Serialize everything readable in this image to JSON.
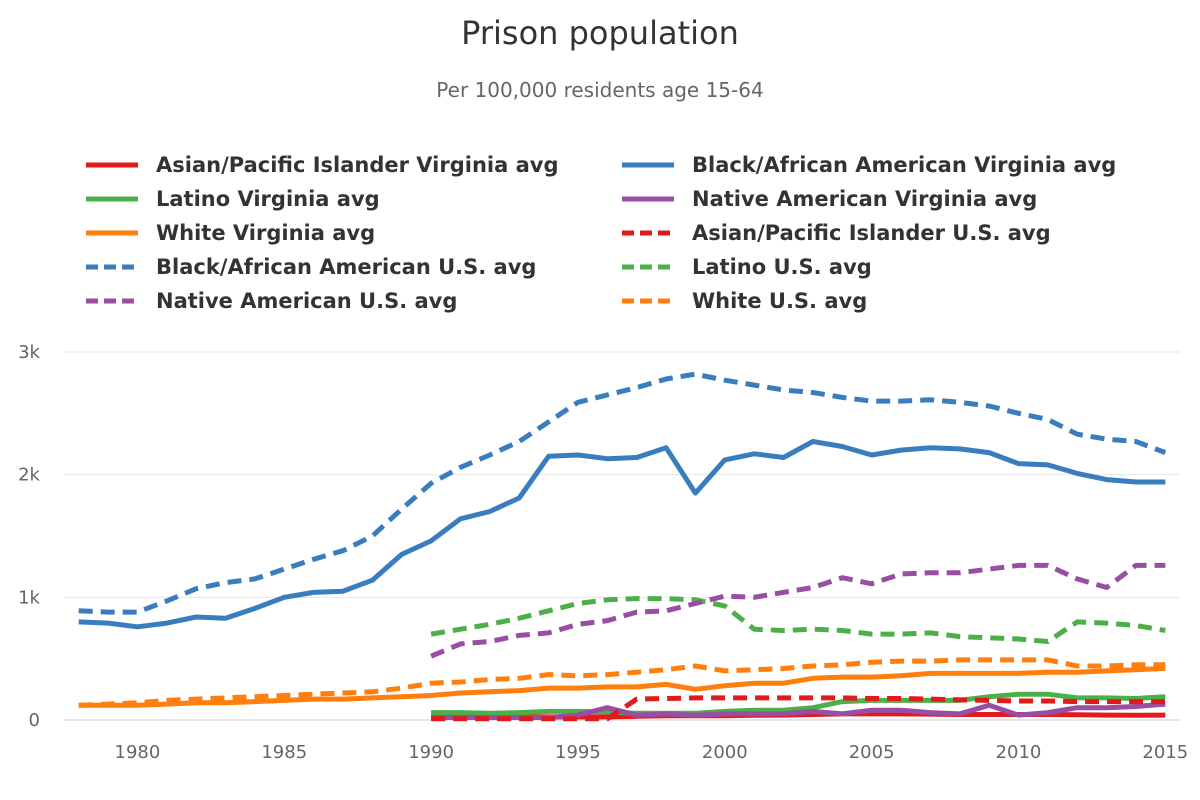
{
  "chart_data": {
    "type": "line",
    "title": "Prison population",
    "subtitle": "Per 100,000 residents age 15-64",
    "xlabel": "",
    "ylabel": "",
    "xlim": [
      1977.5,
      2015.5
    ],
    "ylim": [
      0,
      3000
    ],
    "x_ticks": [
      1980,
      1985,
      1990,
      1995,
      2000,
      2005,
      2010,
      2015
    ],
    "y_ticks": [
      0,
      1000,
      2000,
      3000
    ],
    "y_tick_labels": [
      "0",
      "1k",
      "2k",
      "3k"
    ],
    "grid": "horizontal",
    "legend_position": "top",
    "series": [
      {
        "name": "Asian/Pacific Islander Virginia avg",
        "color": "#e31a1c",
        "dash": "solid",
        "x": [
          1990,
          1991,
          1992,
          1993,
          1994,
          1995,
          1996,
          1997,
          1998,
          1999,
          2000,
          2001,
          2002,
          2003,
          2004,
          2005,
          2006,
          2007,
          2008,
          2009,
          2010,
          2011,
          2012,
          2013,
          2014,
          2015
        ],
        "values": [
          25,
          25,
          25,
          25,
          25,
          25,
          25,
          30,
          35,
          35,
          35,
          38,
          40,
          45,
          50,
          50,
          50,
          48,
          45,
          45,
          45,
          45,
          42,
          40,
          38,
          40
        ]
      },
      {
        "name": "Black/African American Virginia avg",
        "color": "#3a7dbf",
        "dash": "solid",
        "x": [
          1978,
          1979,
          1980,
          1981,
          1982,
          1983,
          1984,
          1985,
          1986,
          1987,
          1988,
          1989,
          1990,
          1991,
          1992,
          1993,
          1994,
          1995,
          1996,
          1997,
          1998,
          1999,
          2000,
          2001,
          2002,
          2003,
          2004,
          2005,
          2006,
          2007,
          2008,
          2009,
          2010,
          2011,
          2012,
          2013,
          2014,
          2015
        ],
        "values": [
          800,
          790,
          760,
          790,
          840,
          830,
          910,
          1000,
          1040,
          1050,
          1140,
          1350,
          1460,
          1640,
          1700,
          1810,
          2150,
          2160,
          2130,
          2140,
          2220,
          1850,
          2120,
          2170,
          2140,
          2270,
          2230,
          2160,
          2200,
          2220,
          2210,
          2180,
          2090,
          2080,
          2010,
          1960,
          1940,
          1940
        ]
      },
      {
        "name": "Latino Virginia avg",
        "color": "#4daf4a",
        "dash": "solid",
        "x": [
          1990,
          1991,
          1992,
          1993,
          1994,
          1995,
          1996,
          1997,
          1998,
          1999,
          2000,
          2001,
          2002,
          2003,
          2004,
          2005,
          2006,
          2007,
          2008,
          2009,
          2010,
          2011,
          2012,
          2013,
          2014,
          2015
        ],
        "values": [
          60,
          60,
          55,
          60,
          70,
          70,
          65,
          55,
          55,
          55,
          70,
          80,
          80,
          100,
          150,
          160,
          160,
          160,
          160,
          190,
          210,
          210,
          180,
          180,
          175,
          190
        ]
      },
      {
        "name": "Native American Virginia avg",
        "color": "#984ea3",
        "dash": "solid",
        "x": [
          1990,
          1991,
          1992,
          1993,
          1994,
          1995,
          1996,
          1997,
          1998,
          1999,
          2000,
          2001,
          2002,
          2003,
          2004,
          2005,
          2006,
          2007,
          2008,
          2009,
          2010,
          2011,
          2012,
          2013,
          2014,
          2015
        ],
        "values": [
          20,
          20,
          20,
          20,
          20,
          40,
          100,
          40,
          50,
          40,
          50,
          50,
          50,
          70,
          50,
          80,
          80,
          60,
          50,
          120,
          40,
          60,
          100,
          100,
          110,
          130
        ]
      },
      {
        "name": "White Virginia avg",
        "color": "#ff7f0e",
        "dash": "solid",
        "x": [
          1978,
          1979,
          1980,
          1981,
          1982,
          1983,
          1984,
          1985,
          1986,
          1987,
          1988,
          1989,
          1990,
          1991,
          1992,
          1993,
          1994,
          1995,
          1996,
          1997,
          1998,
          1999,
          2000,
          2001,
          2002,
          2003,
          2004,
          2005,
          2006,
          2007,
          2008,
          2009,
          2010,
          2011,
          2012,
          2013,
          2014,
          2015
        ],
        "values": [
          120,
          120,
          120,
          130,
          140,
          140,
          150,
          160,
          170,
          170,
          180,
          190,
          200,
          220,
          230,
          240,
          260,
          260,
          270,
          270,
          290,
          250,
          280,
          300,
          300,
          340,
          350,
          350,
          360,
          380,
          380,
          380,
          380,
          390,
          390,
          400,
          410,
          420
        ]
      },
      {
        "name": "Asian/Pacific Islander U.S. avg",
        "color": "#e31a1c",
        "dash": "dashed",
        "x": [
          1990,
          1991,
          1992,
          1993,
          1994,
          1995,
          1996,
          1997,
          1998,
          1999,
          2000,
          2001,
          2002,
          2003,
          2004,
          2005,
          2006,
          2007,
          2008,
          2009,
          2010,
          2011,
          2012,
          2013,
          2014,
          2015
        ],
        "values": [
          10,
          10,
          10,
          10,
          10,
          10,
          10,
          170,
          175,
          180,
          180,
          180,
          180,
          180,
          180,
          175,
          175,
          170,
          165,
          160,
          155,
          155,
          150,
          150,
          150,
          150
        ]
      },
      {
        "name": "Black/African American U.S. avg",
        "color": "#3a7dbf",
        "dash": "dashed",
        "x": [
          1978,
          1979,
          1980,
          1981,
          1982,
          1983,
          1984,
          1985,
          1986,
          1987,
          1988,
          1989,
          1990,
          1991,
          1992,
          1993,
          1994,
          1995,
          1996,
          1997,
          1998,
          1999,
          2000,
          2001,
          2002,
          2003,
          2004,
          2005,
          2006,
          2007,
          2008,
          2009,
          2010,
          2011,
          2012,
          2013,
          2014,
          2015
        ],
        "values": [
          890,
          880,
          880,
          970,
          1070,
          1120,
          1150,
          1230,
          1310,
          1380,
          1500,
          1720,
          1930,
          2060,
          2160,
          2270,
          2430,
          2590,
          2650,
          2710,
          2780,
          2820,
          2770,
          2730,
          2690,
          2670,
          2630,
          2600,
          2600,
          2610,
          2590,
          2560,
          2500,
          2450,
          2330,
          2290,
          2270,
          2180
        ]
      },
      {
        "name": "Latino U.S. avg",
        "color": "#4daf4a",
        "dash": "dashed",
        "x": [
          1990,
          1991,
          1992,
          1993,
          1994,
          1995,
          1996,
          1997,
          1998,
          1999,
          2000,
          2001,
          2002,
          2003,
          2004,
          2005,
          2006,
          2007,
          2008,
          2009,
          2010,
          2011,
          2012,
          2013,
          2014,
          2015
        ],
        "values": [
          700,
          740,
          780,
          830,
          890,
          950,
          980,
          990,
          990,
          980,
          930,
          740,
          730,
          740,
          730,
          700,
          700,
          710,
          680,
          670,
          660,
          640,
          800,
          790,
          770,
          730
        ]
      },
      {
        "name": "Native American U.S. avg",
        "color": "#984ea3",
        "dash": "dashed",
        "x": [
          1990,
          1991,
          1992,
          1993,
          1994,
          1995,
          1996,
          1997,
          1998,
          1999,
          2000,
          2001,
          2002,
          2003,
          2004,
          2005,
          2006,
          2007,
          2008,
          2009,
          2010,
          2011,
          2012,
          2013,
          2014,
          2015
        ],
        "values": [
          520,
          620,
          640,
          690,
          710,
          780,
          810,
          880,
          890,
          950,
          1010,
          1000,
          1040,
          1080,
          1160,
          1110,
          1190,
          1200,
          1200,
          1230,
          1260,
          1260,
          1150,
          1080,
          1260,
          1260
        ]
      },
      {
        "name": "White U.S. avg",
        "color": "#ff7f0e",
        "dash": "dashed",
        "x": [
          1978,
          1979,
          1980,
          1981,
          1982,
          1983,
          1984,
          1985,
          1986,
          1987,
          1988,
          1989,
          1990,
          1991,
          1992,
          1993,
          1994,
          1995,
          1996,
          1997,
          1998,
          1999,
          2000,
          2001,
          2002,
          2003,
          2004,
          2005,
          2006,
          2007,
          2008,
          2009,
          2010,
          2011,
          2012,
          2013,
          2014,
          2015
        ],
        "values": [
          120,
          130,
          140,
          160,
          170,
          180,
          190,
          200,
          210,
          220,
          230,
          260,
          300,
          310,
          330,
          340,
          370,
          360,
          370,
          390,
          410,
          440,
          400,
          410,
          420,
          440,
          450,
          470,
          480,
          480,
          490,
          490,
          490,
          490,
          440,
          440,
          450,
          450
        ]
      }
    ]
  }
}
